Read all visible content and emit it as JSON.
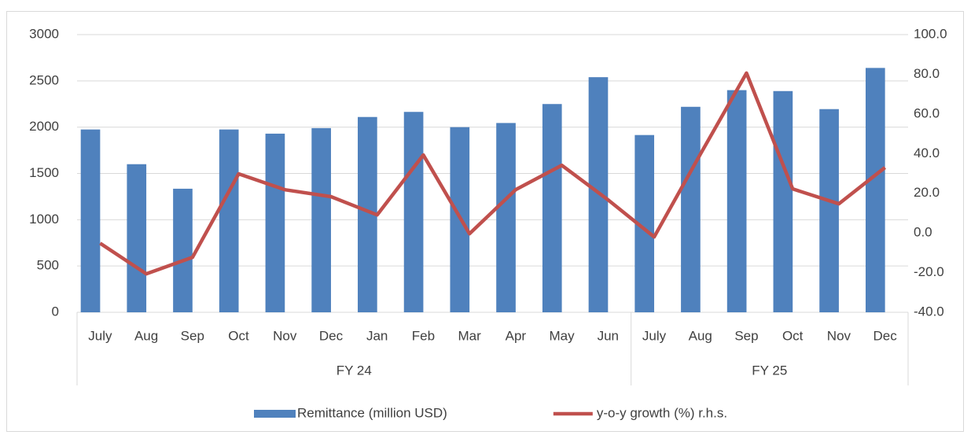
{
  "chart_data": {
    "type": "combo",
    "category_groups": [
      {
        "label": "FY 24",
        "categories": [
          "July",
          "Aug",
          "Sep",
          "Oct",
          "Nov",
          "Dec",
          "Jan",
          "Feb",
          "Mar",
          "Apr",
          "May",
          "Jun"
        ]
      },
      {
        "label": "FY 25",
        "categories": [
          "July",
          "Aug",
          "Sep",
          "Oct",
          "Nov",
          "Dec"
        ]
      }
    ],
    "series": [
      {
        "name": "Remittance (million USD)",
        "type": "bar",
        "color": "#4f81bd",
        "values": [
          1975,
          1600,
          1335,
          1975,
          1930,
          1990,
          2110,
          2165,
          2000,
          2045,
          2250,
          2540,
          1915,
          2220,
          2400,
          2390,
          2195,
          2640
        ]
      },
      {
        "name": "y-o-y growth (%) r.h.s.",
        "type": "line",
        "axis": "y2",
        "color": "#c0504d",
        "values": [
          -5.2,
          -20.6,
          -12.3,
          29.8,
          21.8,
          18.3,
          9.1,
          39.3,
          -0.4,
          21.8,
          34.1,
          16.7,
          -2.0,
          39.7,
          80.6,
          22.2,
          14.7,
          33.0
        ]
      }
    ],
    "ylim": [
      0,
      3000
    ],
    "yticks": [
      0,
      500,
      1000,
      1500,
      2000,
      2500,
      3000
    ],
    "y2lim": [
      -40,
      100
    ],
    "y2ticks": [
      {
        "value": -40,
        "label": "-40.0"
      },
      {
        "value": -20,
        "label": "-20.0"
      },
      {
        "value": 0,
        "label": "0.0"
      },
      {
        "value": 20,
        "label": "20.0"
      },
      {
        "value": 40,
        "label": "40.0"
      },
      {
        "value": 60,
        "label": "60.0"
      },
      {
        "value": 80,
        "label": "80.0"
      },
      {
        "value": 100,
        "label": "100.0"
      }
    ],
    "grid": true,
    "legend": "bottom"
  }
}
